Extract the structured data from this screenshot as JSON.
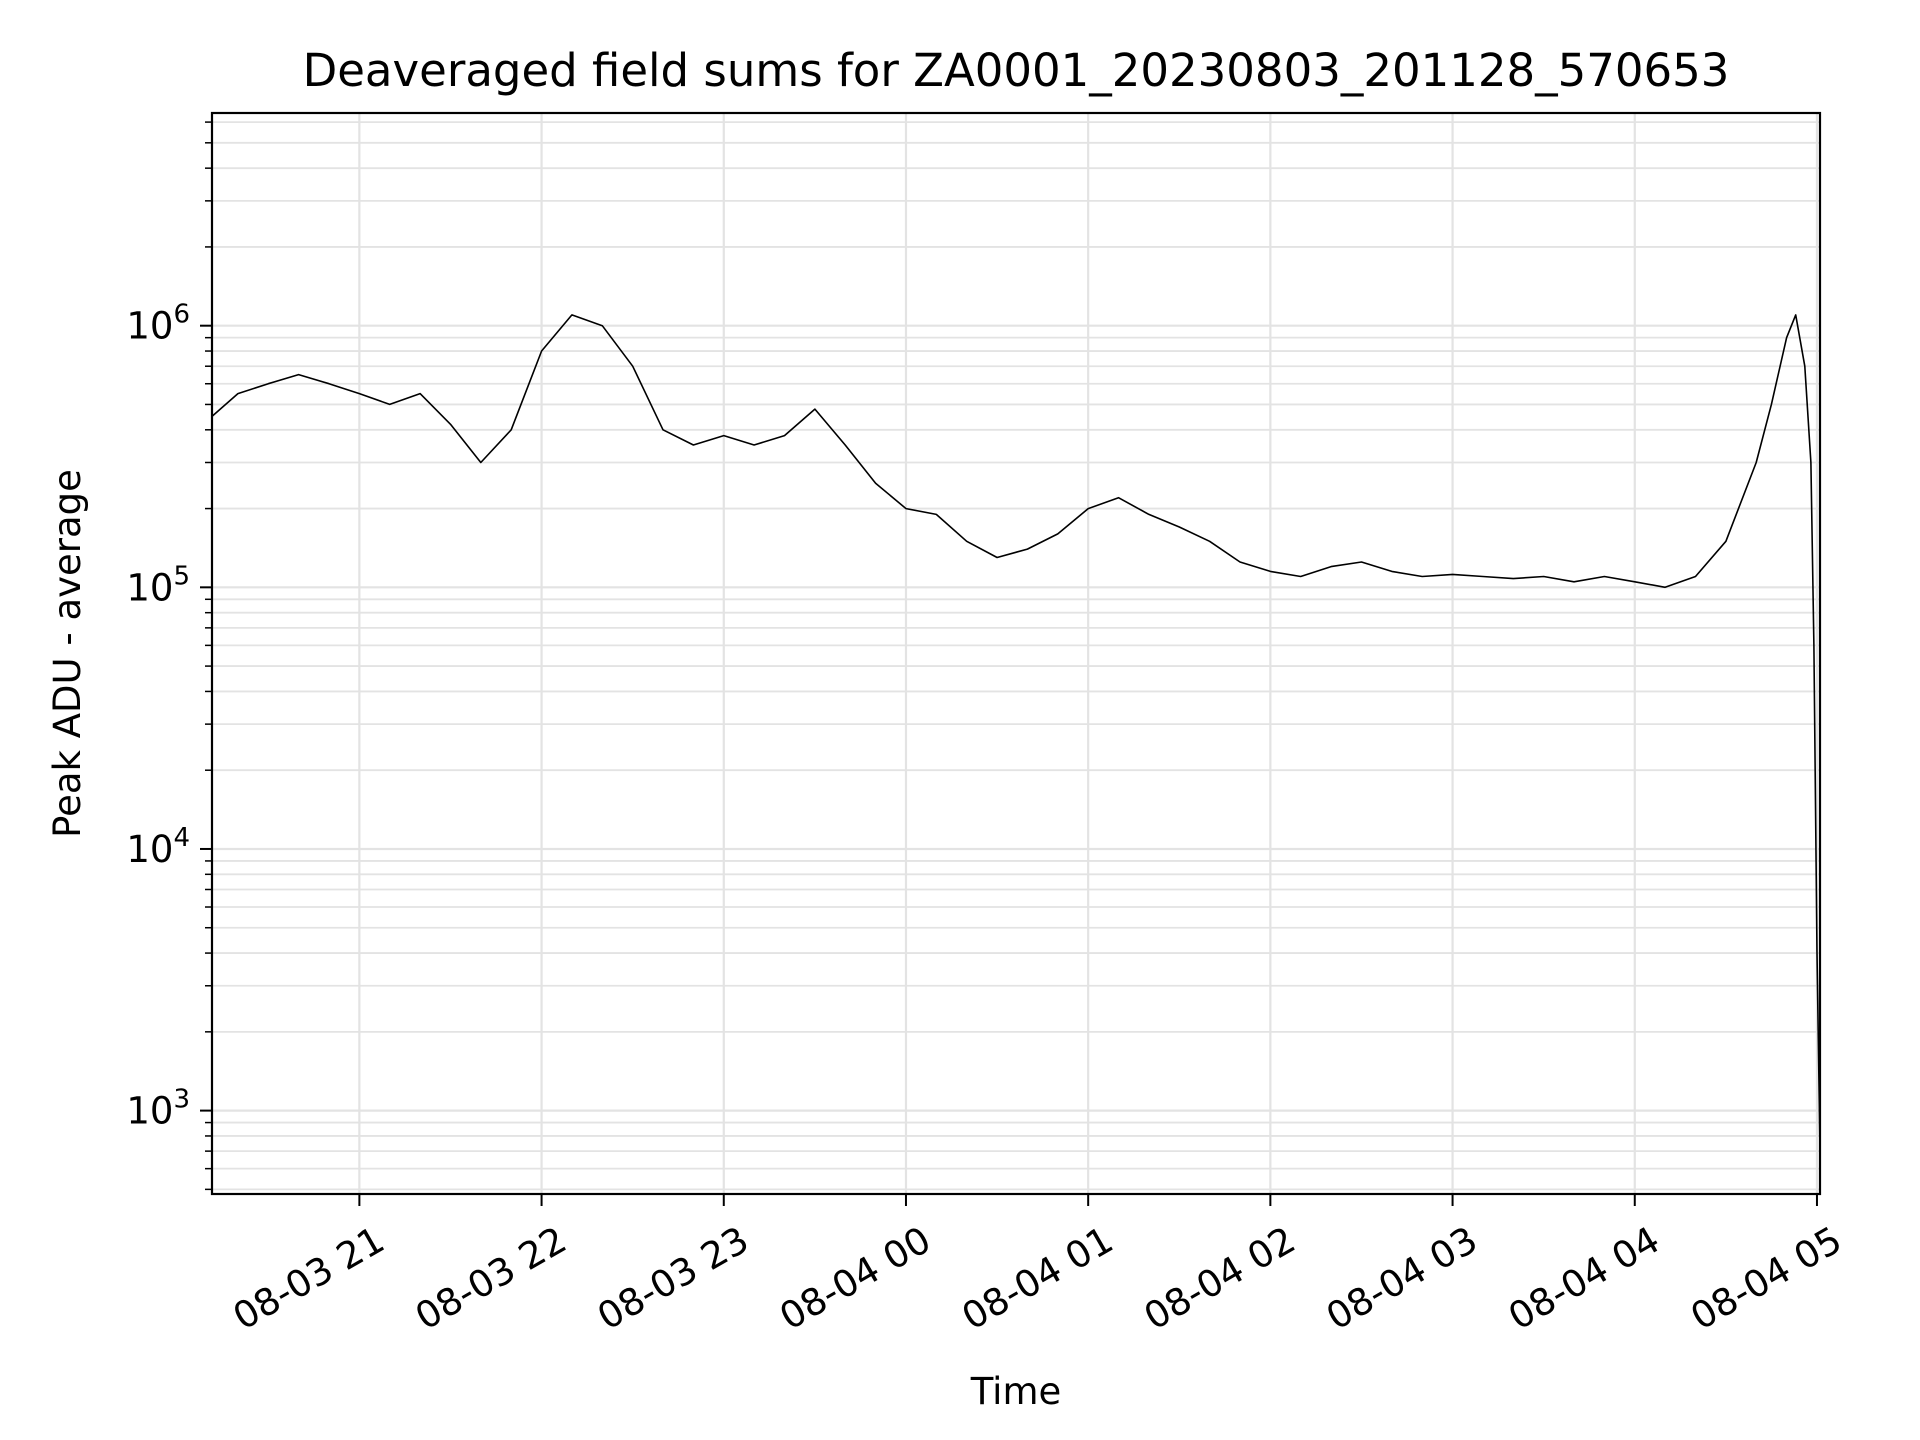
{
  "chart_data": {
    "type": "line",
    "title": "Deaveraged field sums for ZA0001_20230803_201128_570653",
    "xlabel": "Time",
    "ylabel": "Peak ADU - average",
    "yscale": "log",
    "ylim": [
      480,
      6500000
    ],
    "xlim": [
      "2023-08-03T20:11:28",
      "2023-08-04T05:01:00"
    ],
    "grid": true,
    "x_ticks": [
      {
        "t": "2023-08-03T21:00",
        "label": "08-03 21"
      },
      {
        "t": "2023-08-03T22:00",
        "label": "08-03 22"
      },
      {
        "t": "2023-08-03T23:00",
        "label": "08-03 23"
      },
      {
        "t": "2023-08-04T00:00",
        "label": "08-04 00"
      },
      {
        "t": "2023-08-04T01:00",
        "label": "08-04 01"
      },
      {
        "t": "2023-08-04T02:00",
        "label": "08-04 02"
      },
      {
        "t": "2023-08-04T03:00",
        "label": "08-04 03"
      },
      {
        "t": "2023-08-04T04:00",
        "label": "08-04 04"
      },
      {
        "t": "2023-08-04T05:00",
        "label": "08-04 05"
      }
    ],
    "y_ticks": [
      {
        "value": 1000,
        "base": "10",
        "exp": "3"
      },
      {
        "value": 10000,
        "base": "10",
        "exp": "4"
      },
      {
        "value": 100000,
        "base": "10",
        "exp": "5"
      },
      {
        "value": 1000000,
        "base": "10",
        "exp": "6"
      }
    ],
    "series": [
      {
        "color": "#000000",
        "points": [
          [
            "2023-08-03T20:11:28",
            450000
          ],
          [
            "2023-08-03T20:20",
            550000
          ],
          [
            "2023-08-03T20:30",
            600000
          ],
          [
            "2023-08-03T20:40",
            650000
          ],
          [
            "2023-08-03T20:50",
            600000
          ],
          [
            "2023-08-03T21:00",
            550000
          ],
          [
            "2023-08-03T21:10",
            500000
          ],
          [
            "2023-08-03T21:20",
            550000
          ],
          [
            "2023-08-03T21:30",
            420000
          ],
          [
            "2023-08-03T21:40",
            300000
          ],
          [
            "2023-08-03T21:50",
            400000
          ],
          [
            "2023-08-03T22:00",
            800000
          ],
          [
            "2023-08-03T22:10",
            1100000
          ],
          [
            "2023-08-03T22:20",
            1000000
          ],
          [
            "2023-08-03T22:30",
            700000
          ],
          [
            "2023-08-03T22:40",
            400000
          ],
          [
            "2023-08-03T22:50",
            350000
          ],
          [
            "2023-08-03T23:00",
            380000
          ],
          [
            "2023-08-03T23:10",
            350000
          ],
          [
            "2023-08-03T23:20",
            380000
          ],
          [
            "2023-08-03T23:30",
            480000
          ],
          [
            "2023-08-03T23:40",
            350000
          ],
          [
            "2023-08-03T23:50",
            250000
          ],
          [
            "2023-08-04T00:00",
            200000
          ],
          [
            "2023-08-04T00:10",
            190000
          ],
          [
            "2023-08-04T00:20",
            150000
          ],
          [
            "2023-08-04T00:30",
            130000
          ],
          [
            "2023-08-04T00:40",
            140000
          ],
          [
            "2023-08-04T00:50",
            160000
          ],
          [
            "2023-08-04T01:00",
            200000
          ],
          [
            "2023-08-04T01:10",
            220000
          ],
          [
            "2023-08-04T01:20",
            190000
          ],
          [
            "2023-08-04T01:30",
            170000
          ],
          [
            "2023-08-04T01:40",
            150000
          ],
          [
            "2023-08-04T01:50",
            125000
          ],
          [
            "2023-08-04T02:00",
            115000
          ],
          [
            "2023-08-04T02:10",
            110000
          ],
          [
            "2023-08-04T02:20",
            120000
          ],
          [
            "2023-08-04T02:30",
            125000
          ],
          [
            "2023-08-04T02:40",
            115000
          ],
          [
            "2023-08-04T02:50",
            110000
          ],
          [
            "2023-08-04T03:00",
            112000
          ],
          [
            "2023-08-04T03:10",
            110000
          ],
          [
            "2023-08-04T03:20",
            108000
          ],
          [
            "2023-08-04T03:30",
            110000
          ],
          [
            "2023-08-04T03:40",
            105000
          ],
          [
            "2023-08-04T03:50",
            110000
          ],
          [
            "2023-08-04T04:00",
            105000
          ],
          [
            "2023-08-04T04:10",
            100000
          ],
          [
            "2023-08-04T04:20",
            110000
          ],
          [
            "2023-08-04T04:30",
            150000
          ],
          [
            "2023-08-04T04:40",
            300000
          ],
          [
            "2023-08-04T04:45",
            500000
          ],
          [
            "2023-08-04T04:50",
            900000
          ],
          [
            "2023-08-04T04:53",
            1100000
          ],
          [
            "2023-08-04T04:56",
            700000
          ],
          [
            "2023-08-04T04:58",
            300000
          ],
          [
            "2023-08-04T04:59",
            60000
          ],
          [
            "2023-08-04T05:00",
            4000
          ],
          [
            "2023-08-04T05:01",
            700
          ]
        ]
      }
    ]
  }
}
